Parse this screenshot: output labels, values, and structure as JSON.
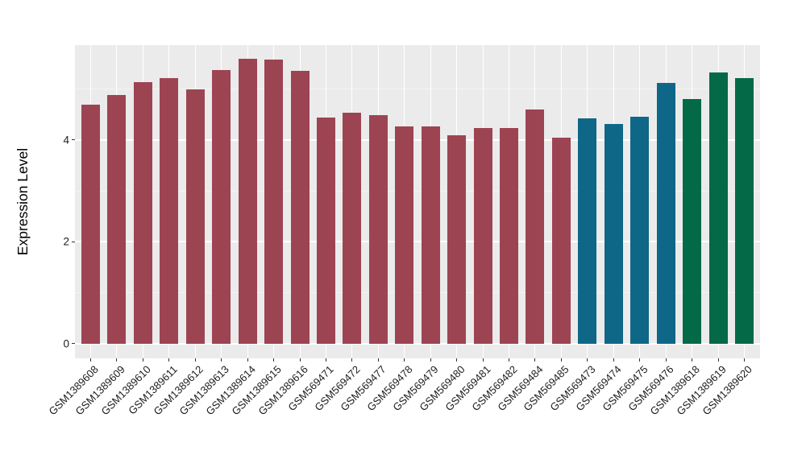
{
  "figure": {
    "background": "#FFFFFF"
  },
  "chart_data": {
    "type": "bar",
    "title": "",
    "xlabel": "",
    "ylabel": "Expression Level",
    "legend": "none",
    "grid": "major and minor horizontal, major vertical per category",
    "ylim": [
      -0.285,
      5.865
    ],
    "yticks": [
      {
        "value": 0,
        "label": "0"
      },
      {
        "value": 2,
        "label": "2"
      },
      {
        "value": 4,
        "label": "4"
      }
    ],
    "yminor": [
      1,
      3,
      5
    ],
    "categories": [
      "GSM1389608",
      "GSM1389609",
      "GSM1389610",
      "GSM1389611",
      "GSM1389612",
      "GSM1389613",
      "GSM1389614",
      "GSM1389615",
      "GSM1389616",
      "GSM569471",
      "GSM569472",
      "GSM569477",
      "GSM569478",
      "GSM569479",
      "GSM569480",
      "GSM569481",
      "GSM569482",
      "GSM569484",
      "GSM569485",
      "GSM569473",
      "GSM569474",
      "GSM569475",
      "GSM569476",
      "GSM1389618",
      "GSM1389619",
      "GSM1389620"
    ],
    "values": [
      4.69,
      4.89,
      5.14,
      5.21,
      4.99,
      5.38,
      5.59,
      5.58,
      5.36,
      4.44,
      4.54,
      4.49,
      4.27,
      4.27,
      4.1,
      4.23,
      4.23,
      4.6,
      4.04,
      4.43,
      4.32,
      4.46,
      5.12,
      4.81,
      5.33,
      5.22
    ],
    "bar_groups": [
      "maroon",
      "maroon",
      "maroon",
      "maroon",
      "maroon",
      "maroon",
      "maroon",
      "maroon",
      "maroon",
      "maroon",
      "maroon",
      "maroon",
      "maroon",
      "maroon",
      "maroon",
      "maroon",
      "maroon",
      "maroon",
      "maroon",
      "teal",
      "teal",
      "teal",
      "teal",
      "green",
      "green",
      "green"
    ],
    "group_colors": {
      "maroon": "#9D4452",
      "teal": "#0F6787",
      "green": "#046947"
    },
    "style": {
      "panel_bg": "#EBEBEB",
      "grid_major": "#FFFFFF",
      "grid_minor": "#F4F4F4",
      "tick_mark": "#333333",
      "axis_text": "#1C1C1C",
      "axis_title": "#000000"
    }
  }
}
